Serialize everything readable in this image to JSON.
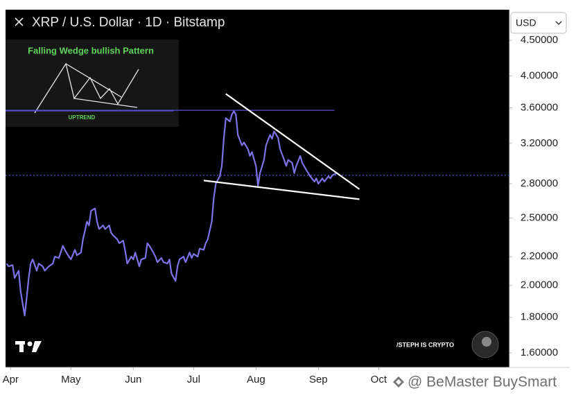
{
  "chart_data": {
    "type": "line",
    "title": "XRP / U.S. Dollar · 1D · Bitstamp",
    "currency": "USD",
    "inset_title": "Falling Wedge bullish Pattern",
    "inset_label": "UPTREND",
    "credit": "/STEPH IS CRYPTO",
    "watermark": "@ BeMaster BuySmart",
    "log_y": true,
    "y_axis_side": "right",
    "grid": false,
    "xlim": [
      -2.5,
      248
    ],
    "xticks": [
      {
        "value": 0,
        "label": "Apr"
      },
      {
        "value": 30,
        "label": "May"
      },
      {
        "value": 61,
        "label": "Jun"
      },
      {
        "value": 91,
        "label": "Jul"
      },
      {
        "value": 122,
        "label": "Aug"
      },
      {
        "value": 153,
        "label": "Sep"
      },
      {
        "value": 183,
        "label": "Oct"
      }
    ],
    "ylim": [
      1.525,
      4.98
    ],
    "yticks": [
      {
        "value": 1.6,
        "label": "1.60000"
      },
      {
        "value": 1.8,
        "label": "1.80000"
      },
      {
        "value": 2.0,
        "label": "2.00000"
      },
      {
        "value": 2.2,
        "label": "2.20000"
      },
      {
        "value": 2.5,
        "label": "2.50000"
      },
      {
        "value": 2.8,
        "label": "2.80000"
      },
      {
        "value": 3.2,
        "label": "3.20000"
      },
      {
        "value": 3.6,
        "label": "3.60000"
      },
      {
        "value": 4.0,
        "label": "4.00000"
      },
      {
        "value": 4.5,
        "label": "4.50000"
      }
    ],
    "series": [
      {
        "color": "#7d72e6",
        "x": [
          -2,
          -1,
          1,
          2,
          4,
          5,
          7,
          8,
          9,
          10,
          11,
          13,
          14,
          16,
          17,
          19,
          21,
          22,
          24,
          26,
          27,
          29,
          30,
          32,
          33,
          35,
          36,
          38,
          39,
          40,
          42,
          43,
          44,
          46,
          47,
          49,
          50,
          51,
          53,
          54,
          56,
          57,
          58,
          60,
          61,
          62,
          64,
          65,
          67,
          68,
          69,
          71,
          72,
          73,
          75,
          76,
          78,
          79,
          80,
          82,
          83,
          84,
          86,
          87,
          89,
          90,
          91,
          93,
          94,
          96,
          97,
          98,
          100,
          101,
          102,
          104,
          105,
          106,
          107,
          109,
          110,
          111,
          112,
          113,
          115,
          116,
          118,
          119,
          120,
          122,
          123,
          124,
          126,
          127,
          129,
          130,
          131,
          133,
          134,
          136,
          137,
          138,
          140,
          141,
          142,
          144,
          145,
          147,
          148,
          149,
          151,
          152,
          153,
          155,
          156,
          158,
          159,
          160,
          162
        ],
        "values": [
          2.15,
          2.13,
          2.14,
          2.05,
          2.1,
          1.96,
          1.81,
          1.92,
          2.05,
          2.15,
          2.18,
          2.1,
          2.15,
          2.13,
          2.1,
          2.13,
          2.15,
          2.2,
          2.19,
          2.28,
          2.25,
          2.2,
          2.18,
          2.25,
          2.21,
          2.23,
          2.33,
          2.47,
          2.44,
          2.56,
          2.58,
          2.47,
          2.41,
          2.44,
          2.41,
          2.44,
          2.38,
          2.36,
          2.33,
          2.3,
          2.32,
          2.24,
          2.15,
          2.2,
          2.18,
          2.23,
          2.13,
          2.18,
          2.19,
          2.3,
          2.28,
          2.23,
          2.2,
          2.16,
          2.19,
          2.16,
          2.15,
          2.18,
          2.08,
          2.03,
          2.13,
          2.18,
          2.2,
          2.16,
          2.23,
          2.19,
          2.22,
          2.2,
          2.26,
          2.25,
          2.3,
          2.33,
          2.47,
          2.67,
          2.8,
          2.87,
          2.97,
          3.25,
          3.48,
          3.44,
          3.52,
          3.56,
          3.52,
          3.29,
          3.18,
          3.21,
          3.14,
          3.07,
          3.11,
          2.97,
          2.78,
          2.9,
          3.03,
          3.18,
          3.29,
          3.25,
          3.33,
          3.26,
          3.14,
          3.03,
          2.97,
          3.03,
          3.0,
          2.9,
          2.97,
          3.07,
          3.0,
          2.93,
          2.9,
          2.87,
          2.82,
          2.85,
          2.8,
          2.85,
          2.82,
          2.87,
          2.85,
          2.88,
          2.9
        ]
      }
    ],
    "trendlines": [
      {
        "color": "#ffffff",
        "x": [
          107,
          173.4
        ],
        "values": [
          3.77,
          2.75
        ]
      },
      {
        "color": "#ffffff",
        "x": [
          96,
          173.4
        ],
        "values": [
          2.83,
          2.66
        ]
      }
    ],
    "levels": [
      {
        "value": 3.57,
        "x": [
          -2.5,
          161
        ],
        "color": "#5a4ed8",
        "dashed": false
      },
      {
        "value": 2.88,
        "x": [
          -2.5,
          248
        ],
        "color": "#4b57d0",
        "dashed": true
      }
    ]
  }
}
